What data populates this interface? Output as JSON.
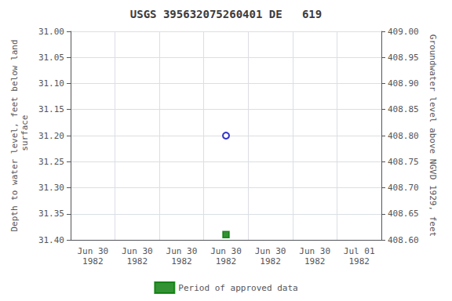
{
  "chart_data": {
    "type": "scatter",
    "title": "USGS 395632075260401 DE   619",
    "ylabel": "Depth to water level, feet below land\n surface",
    "y2label": "Groundwater level above NGVD 1929, feet",
    "categories": [
      "Jun 30\n1982",
      "Jun 30\n1982",
      "Jun 30\n1982",
      "Jun 30\n1982",
      "Jun 30\n1982",
      "Jun 30\n1982",
      "Jul 01\n1982"
    ],
    "series": [
      {
        "color": "#0000bb",
        "marker": "emptyCircle",
        "values": [
          null,
          null,
          null,
          31.2,
          null,
          null,
          null
        ]
      },
      {
        "name": "Period of approved data",
        "color": "#007700",
        "marker": "rect",
        "values": [
          null,
          null,
          null,
          31.39,
          null,
          null,
          null
        ]
      }
    ],
    "ylim": [
      31.4,
      31.0
    ],
    "yticks": [
      {
        "value": 31.0,
        "label": "31.00"
      },
      31.05,
      {
        "value": 31.1,
        "label": "31.10"
      },
      31.15,
      {
        "value": 31.2,
        "label": "31.20"
      },
      31.25,
      {
        "value": 31.3,
        "label": "31.30"
      },
      31.35,
      {
        "value": 31.4,
        "label": "31.40"
      }
    ],
    "y2lim": [
      408.6,
      409.0
    ],
    "y2ticks": [
      {
        "value": 409.0,
        "label": "409.00"
      },
      408.95,
      {
        "value": 408.9,
        "label": "408.90"
      },
      408.85,
      {
        "value": 408.8,
        "label": "408.80"
      },
      408.75,
      {
        "value": 408.7,
        "label": "408.70"
      },
      408.65,
      {
        "value": 408.6,
        "label": "408.60"
      }
    ],
    "grid": true,
    "legend": "bottom"
  }
}
